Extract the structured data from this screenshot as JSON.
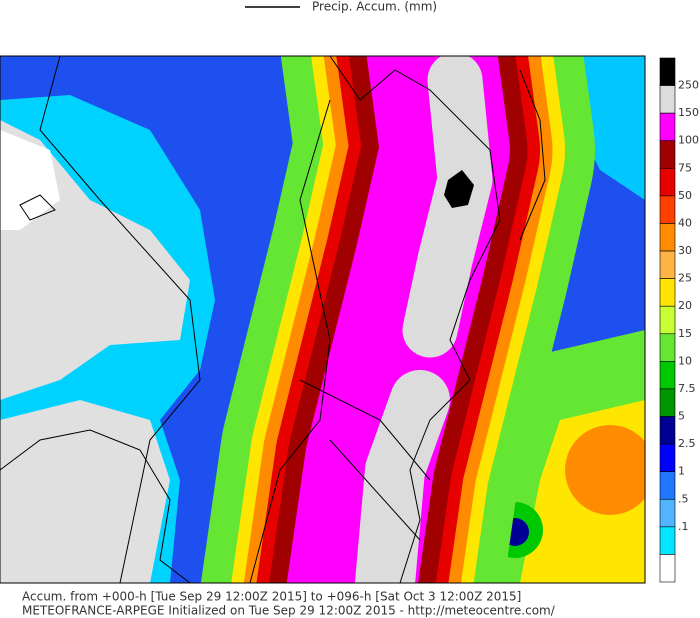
{
  "header": {
    "legend_label": "Precip. Accum. (mm)"
  },
  "colorbar": {
    "levels": [
      "250",
      "150",
      "100",
      "75",
      "50",
      "40",
      "30",
      "25",
      "20",
      "15",
      "10",
      "7.5",
      "5",
      "2.5",
      "1",
      ".5",
      ".1"
    ],
    "colors": [
      "#000000",
      "#dcdcdc",
      "#ff00ff",
      "#a00000",
      "#e60000",
      "#ff4000",
      "#ff8c00",
      "#ffb446",
      "#ffe600",
      "#c8ff32",
      "#64e632",
      "#00c800",
      "#009600",
      "#000096",
      "#0000ff",
      "#1e78ff",
      "#50b4ff",
      "#00e6ff",
      "#ffffff"
    ]
  },
  "footer": {
    "line1": "Accum. from +000-h [Tue Sep 29 12:00Z 2015] to +096-h [Sat Oct 3 12:00Z 2015]",
    "line2": "METEOFRANCE-ARPEGE Initialized on Tue Sep 29 12:00Z 2015 - http://meteocentre.com/"
  }
}
